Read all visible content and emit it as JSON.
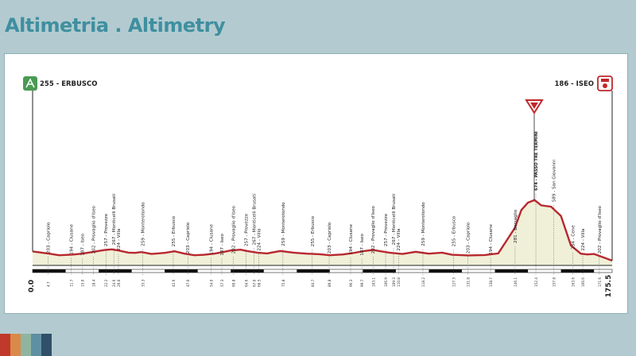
{
  "header": {
    "title": "Altimetria . Altimetry"
  },
  "start": {
    "label": "255 - ERBUSCO",
    "km_label": "0.0",
    "elevation": 255
  },
  "finish": {
    "label": "186 - ISEO",
    "km_label": "175.5",
    "elevation": 186
  },
  "summit_marker": {
    "icon": "gpm-triangle-icon",
    "color": "#c0282c"
  },
  "colors": {
    "profile_line": "#b7282e",
    "profile_fill": "#f0efd8",
    "start_badge": "#4a9a55",
    "finish_badge": "#c0282c",
    "accent": "#3f8fa0"
  },
  "stripe_colors": [
    "#c0392b",
    "#d9894a",
    "#8fb5a0",
    "#5f8fa3",
    "#2f5068"
  ],
  "chart_data": {
    "type": "area",
    "title": "Altimetria . Altimetry",
    "xlabel": "",
    "ylabel": "",
    "xlim": [
      0,
      175.5
    ],
    "grid": false,
    "series": [
      {
        "values": [
          [
            0,
            255
          ],
          [
            5,
            238
          ],
          [
            8,
            226
          ],
          [
            12,
            231
          ],
          [
            15,
            238
          ],
          [
            18,
            250
          ],
          [
            22,
            266
          ],
          [
            24,
            270
          ],
          [
            26,
            262
          ],
          [
            29,
            246
          ],
          [
            31,
            244
          ],
          [
            33,
            250
          ],
          [
            36,
            236
          ],
          [
            40,
            244
          ],
          [
            43,
            256
          ],
          [
            46,
            238
          ],
          [
            49,
            226
          ],
          [
            52,
            230
          ],
          [
            55,
            238
          ],
          [
            58,
            252
          ],
          [
            60,
            262
          ],
          [
            63,
            268
          ],
          [
            65,
            258
          ],
          [
            68,
            246
          ],
          [
            71,
            240
          ],
          [
            75,
            258
          ],
          [
            79,
            246
          ],
          [
            83,
            238
          ],
          [
            87,
            234
          ],
          [
            90,
            226
          ],
          [
            94,
            232
          ],
          [
            97,
            242
          ],
          [
            100,
            256
          ],
          [
            103,
            266
          ],
          [
            105,
            258
          ],
          [
            108,
            246
          ],
          [
            112,
            236
          ],
          [
            116,
            252
          ],
          [
            120,
            238
          ],
          [
            124,
            246
          ],
          [
            127,
            230
          ],
          [
            132,
            225
          ],
          [
            137,
            228
          ],
          [
            141,
            240
          ],
          [
            146,
            430
          ],
          [
            148,
            565
          ],
          [
            150,
            620
          ],
          [
            152,
            640
          ],
          [
            154,
            600
          ],
          [
            157,
            590
          ],
          [
            160,
            520
          ],
          [
            163,
            300
          ],
          [
            166,
            238
          ],
          [
            168,
            232
          ],
          [
            170,
            236
          ],
          [
            172,
            218
          ],
          [
            175.5,
            186
          ]
        ]
      }
    ],
    "waypoints": [
      {
        "km": 4.7,
        "label": "203 - Capriolo"
      },
      {
        "km": 11.7,
        "label": "194 - Clusane"
      },
      {
        "km": 15.0,
        "label": "187 - Iseo"
      },
      {
        "km": 18.4,
        "label": "202 - Provaglio d'Iseo"
      },
      {
        "km": 22.2,
        "label": "257 - Provezze"
      },
      {
        "km": 24.6,
        "label": "267 - Monticelli Brusati"
      },
      {
        "km": 26.0,
        "label": "224 - Villa"
      },
      {
        "km": 33.3,
        "label": "259 - Monterotondo"
      },
      {
        "km": 42.6,
        "label": "255 - Erbusco"
      },
      {
        "km": 47.0,
        "label": "203 - Capriolo"
      },
      {
        "km": 54.0,
        "label": "194 - Clusane"
      },
      {
        "km": 57.3,
        "label": "187 - Iseo"
      },
      {
        "km": 60.8,
        "label": "202 - Provaglio d'Iseo"
      },
      {
        "km": 64.6,
        "label": "257 - Provezze"
      },
      {
        "km": 67.0,
        "label": "267 - Monticelli Brusati"
      },
      {
        "km": 68.5,
        "label": "224 - Villa"
      },
      {
        "km": 75.8,
        "label": "259 - Monterotondo"
      },
      {
        "km": 84.7,
        "label": "255 - Erbusco"
      },
      {
        "km": 89.8,
        "label": "203 - Capriolo"
      },
      {
        "km": 96.3,
        "label": "194 - Clusane"
      },
      {
        "km": 99.7,
        "label": "187 - Iseo"
      },
      {
        "km": 103.1,
        "label": "202 - Provaglio d'Iseo"
      },
      {
        "km": 106.9,
        "label": "257 - Provezze"
      },
      {
        "km": 109.3,
        "label": "267 - Monticelli Brusati"
      },
      {
        "km": 110.8,
        "label": "224 - Villa"
      },
      {
        "km": 118.2,
        "label": "259 - Monterotondo"
      },
      {
        "km": 127.5,
        "label": "255 - Erbusco"
      },
      {
        "km": 131.8,
        "label": "203 - Capriolo"
      },
      {
        "km": 138.7,
        "label": "194 - Clusane"
      },
      {
        "km": 146.1,
        "label": "281 - Bersaglio"
      },
      {
        "km": 152.4,
        "label": "674 - PASSO TRE TERMINI"
      },
      {
        "km": 157.8,
        "label": "589 - San Giovanni"
      },
      {
        "km": 163.6,
        "label": "234 - Cene"
      },
      {
        "km": 166.6,
        "label": "224 - Villa"
      },
      {
        "km": 171.6,
        "label": "202 - Provaglio d'Iseo"
      }
    ],
    "km_ticks": [
      "4.7",
      "11.7",
      "15.0",
      "18.4",
      "22.2",
      "24.6",
      "26.0",
      "33.3",
      "42.6",
      "47.0",
      "54.0",
      "57.3",
      "60.8",
      "64.6",
      "67.0",
      "68.5",
      "75.8",
      "84.7",
      "89.8",
      "96.3",
      "99.7",
      "103.1",
      "106.9",
      "109.3",
      "110.8",
      "118.2",
      "127.5",
      "131.8",
      "138.7",
      "146.1",
      "152.4",
      "157.8",
      "163.6",
      "166.6",
      "171.6"
    ]
  }
}
